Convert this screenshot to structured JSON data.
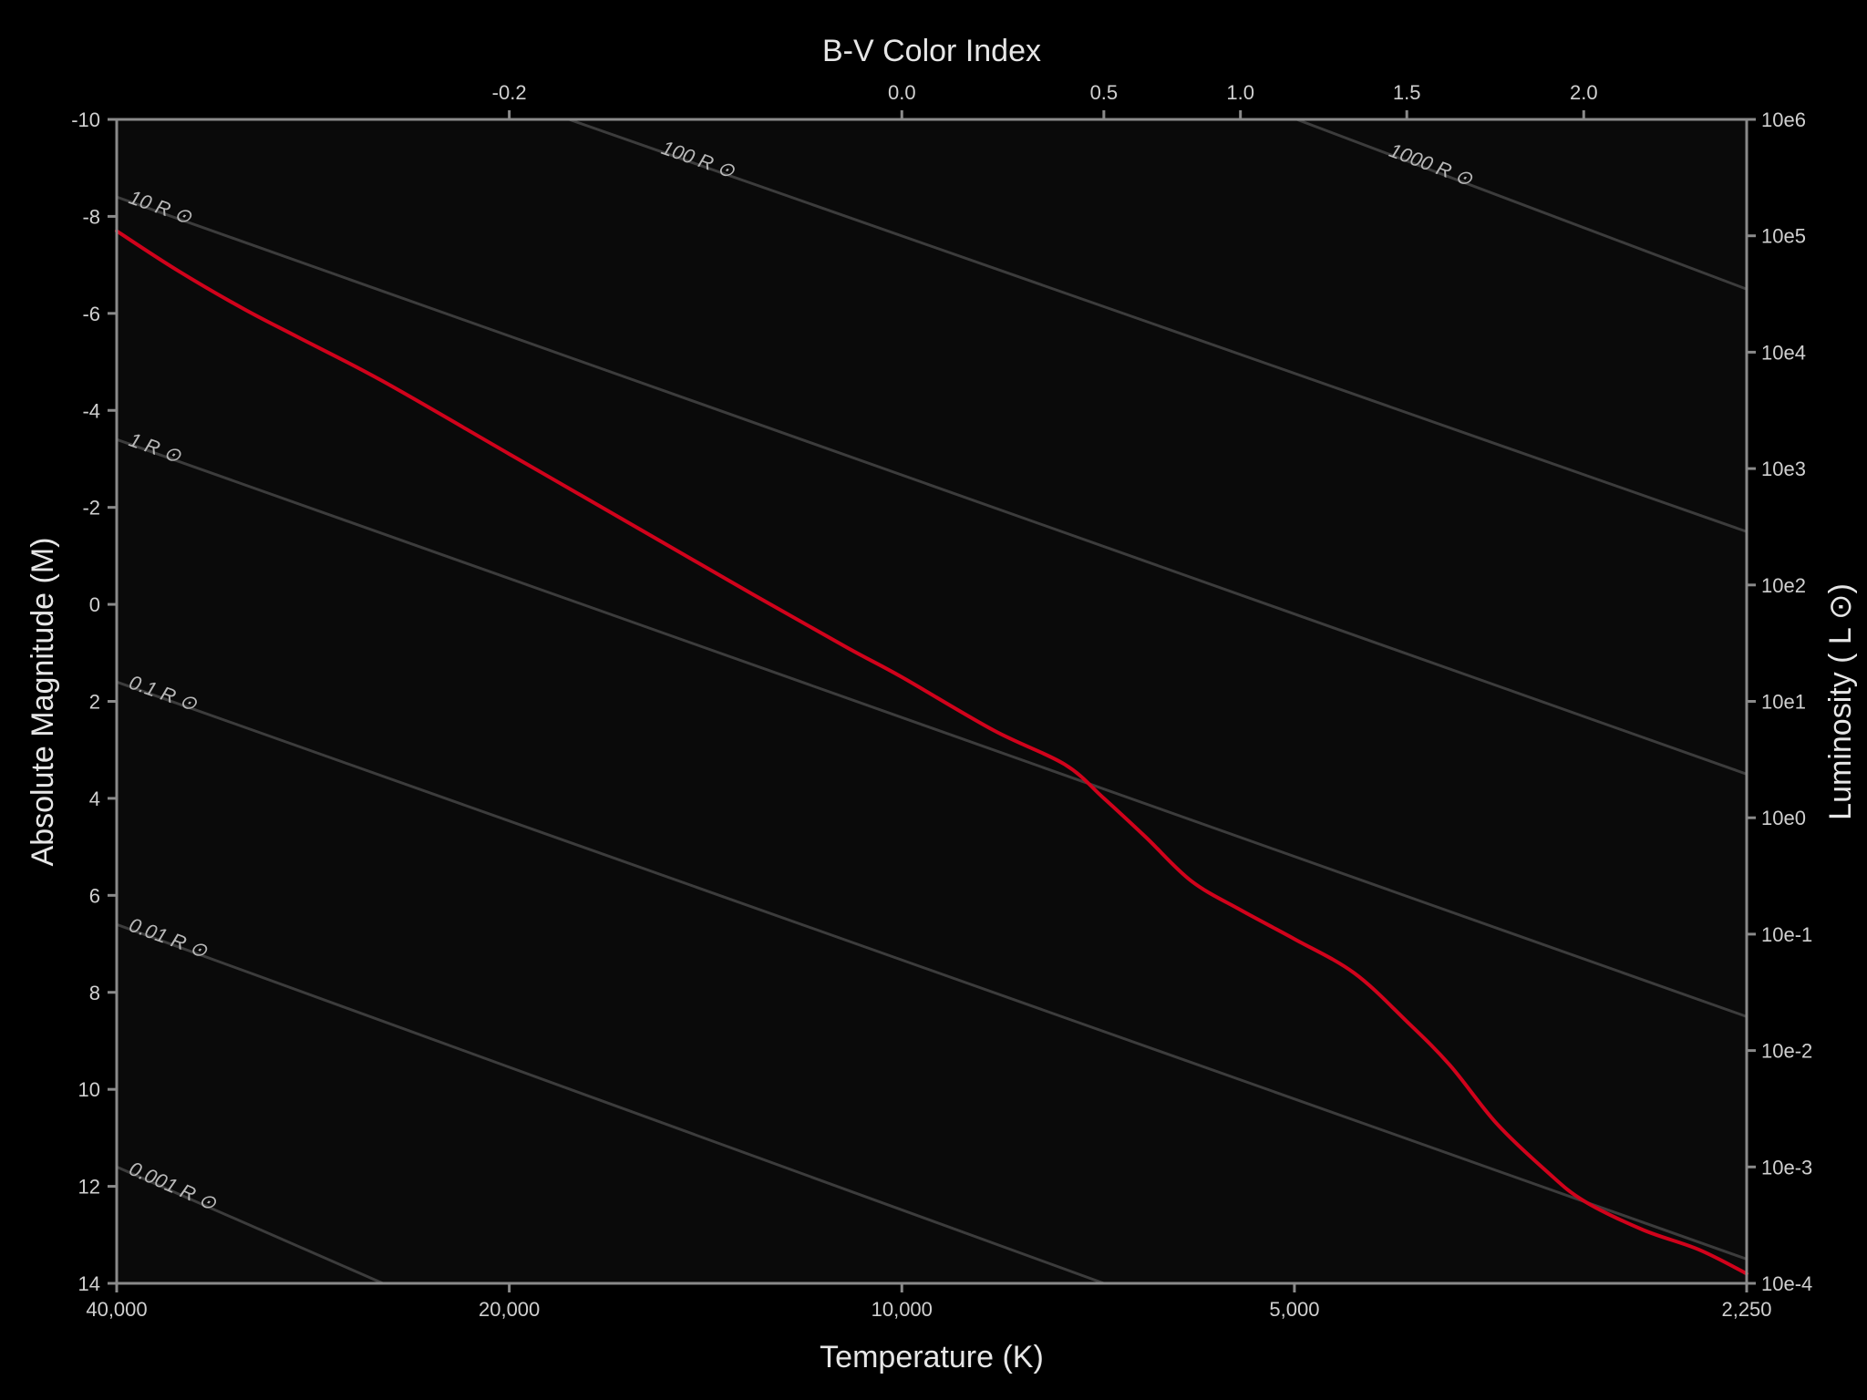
{
  "chart_data": {
    "type": "line",
    "title": "",
    "xlabel": "Temperature (K)",
    "x2label": "B-V Color Index",
    "ylabel": "Absolute Magnitude (M)",
    "y2label": "Luminosity ( L ⊙)",
    "x_scale": "log",
    "x_reversed": true,
    "xlim": [
      40000,
      2250
    ],
    "ylim": [
      -10,
      14
    ],
    "y_reversed": true,
    "grid": false,
    "x_ticks": [
      {
        "value": 40000,
        "label": "40,000"
      },
      {
        "value": 20000,
        "label": "20,000"
      },
      {
        "value": 10000,
        "label": "10,000"
      },
      {
        "value": 5000,
        "label": "5,000"
      },
      {
        "value": 2250,
        "label": "2,250"
      }
    ],
    "y_ticks": [
      {
        "value": -10,
        "label": "-10"
      },
      {
        "value": -8,
        "label": "-8"
      },
      {
        "value": -6,
        "label": "-6"
      },
      {
        "value": -4,
        "label": "-4"
      },
      {
        "value": -2,
        "label": "-2"
      },
      {
        "value": 0,
        "label": "0"
      },
      {
        "value": 2,
        "label": "2"
      },
      {
        "value": 4,
        "label": "4"
      },
      {
        "value": 6,
        "label": "6"
      },
      {
        "value": 8,
        "label": "8"
      },
      {
        "value": 10,
        "label": "10"
      },
      {
        "value": 12,
        "label": "12"
      },
      {
        "value": 14,
        "label": "14"
      }
    ],
    "y2_ticks": [
      {
        "magnitude": -10,
        "label": "10e6"
      },
      {
        "magnitude": -7.6,
        "label": "10e5"
      },
      {
        "magnitude": -5.2,
        "label": "10e4"
      },
      {
        "magnitude": -2.8,
        "label": "10e3"
      },
      {
        "magnitude": -0.4,
        "label": "10e2"
      },
      {
        "magnitude": 2,
        "label": "10e1"
      },
      {
        "magnitude": 4.4,
        "label": "10e0"
      },
      {
        "magnitude": 6.8,
        "label": "10e-1"
      },
      {
        "magnitude": 9.2,
        "label": "10e-2"
      },
      {
        "magnitude": 11.6,
        "label": "10e-3"
      },
      {
        "magnitude": 14,
        "label": "10e-4"
      }
    ],
    "x2_ticks": [
      {
        "temperature": 20000,
        "label": "-0.2"
      },
      {
        "temperature": 10000,
        "label": "0.0"
      },
      {
        "temperature": 7000,
        "label": "0.5"
      },
      {
        "temperature": 5500,
        "label": "1.0"
      },
      {
        "temperature": 4100,
        "label": "1.5"
      },
      {
        "temperature": 3000,
        "label": "2.0"
      }
    ],
    "radius_lines": [
      {
        "label": "1000 R ⊙",
        "points": [
          [
            4980,
            -10
          ],
          [
            2250,
            -6.5
          ]
        ]
      },
      {
        "label": "100 R ⊙",
        "points": [
          [
            18000,
            -10
          ],
          [
            2250,
            -1.5
          ]
        ]
      },
      {
        "label": "10 R ⊙",
        "points": [
          [
            40000,
            -8.4
          ],
          [
            2250,
            3.5
          ]
        ]
      },
      {
        "label": "1 R ⊙",
        "points": [
          [
            40000,
            -3.4
          ],
          [
            2250,
            8.5
          ]
        ]
      },
      {
        "label": "0.1 R ⊙",
        "points": [
          [
            40000,
            1.6
          ],
          [
            2250,
            13.5
          ]
        ]
      },
      {
        "label": "0.01 R ⊙",
        "points": [
          [
            40000,
            6.6
          ],
          [
            7000,
            14
          ]
        ]
      },
      {
        "label": "0.001 R ⊙",
        "points": [
          [
            40000,
            11.6
          ],
          [
            25000,
            14
          ]
        ]
      }
    ],
    "series": [
      {
        "color": "#d0021b",
        "points": [
          [
            40000,
            -7.7
          ],
          [
            36000,
            -6.9
          ],
          [
            32000,
            -6.1
          ],
          [
            29000,
            -5.5
          ],
          [
            25000,
            -4.6
          ],
          [
            20000,
            -3.1
          ],
          [
            16000,
            -1.6
          ],
          [
            13000,
            -0.2
          ],
          [
            11000,
            0.9
          ],
          [
            10000,
            1.5
          ],
          [
            8500,
            2.6
          ],
          [
            7500,
            3.3
          ],
          [
            7000,
            4.0
          ],
          [
            6500,
            4.8
          ],
          [
            6000,
            5.7
          ],
          [
            5500,
            6.3
          ],
          [
            5000,
            6.9
          ],
          [
            4500,
            7.6
          ],
          [
            4100,
            8.6
          ],
          [
            3800,
            9.5
          ],
          [
            3500,
            10.7
          ],
          [
            3200,
            11.7
          ],
          [
            3000,
            12.3
          ],
          [
            2700,
            12.9
          ],
          [
            2450,
            13.3
          ],
          [
            2250,
            13.8
          ]
        ]
      }
    ]
  }
}
